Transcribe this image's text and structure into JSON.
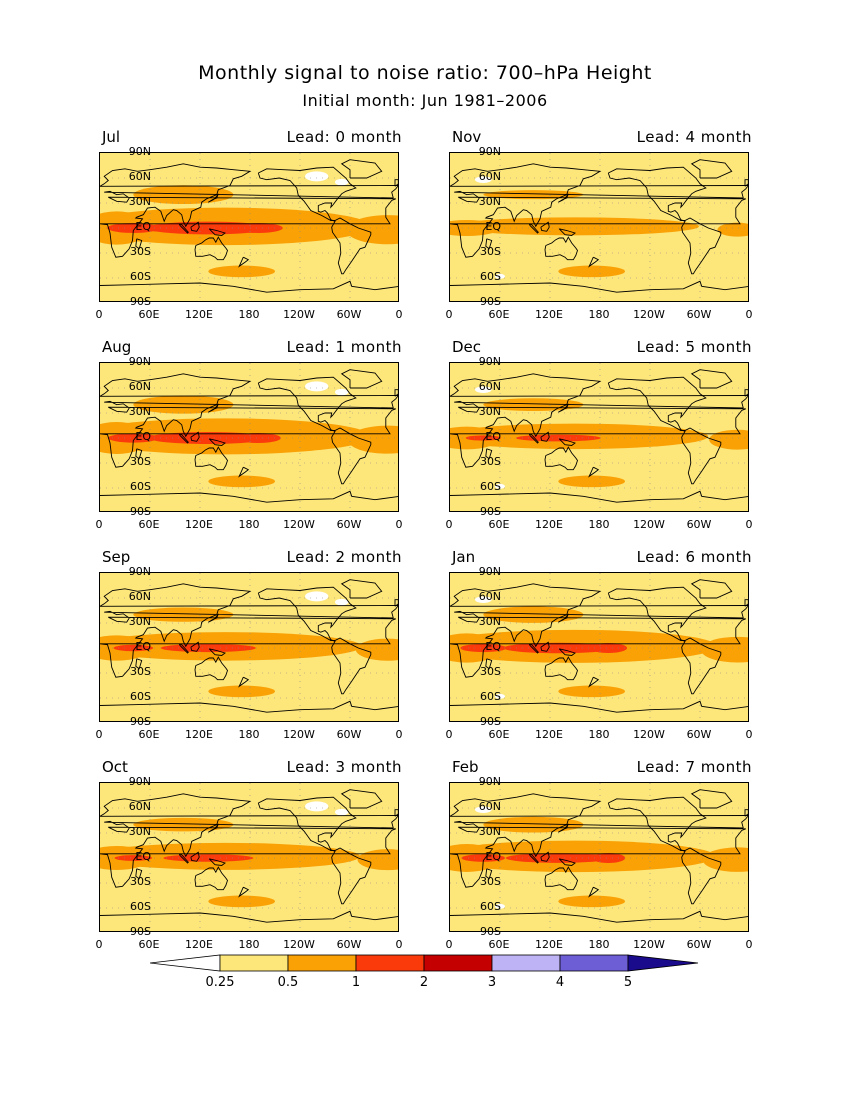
{
  "title": "Monthly signal to noise ratio: 700–hPa Height",
  "subtitle": "Initial month: Jun 1981–2006",
  "y_ticks": [
    "90N",
    "60N",
    "30N",
    "EQ",
    "30S",
    "60S",
    "90S"
  ],
  "x_ticks": [
    "0",
    "60E",
    "120E",
    "180",
    "120W",
    "60W",
    "0"
  ],
  "panels": [
    {
      "month": "Jul",
      "lead": "Lead: 0 month",
      "strength": 1.25
    },
    {
      "month": "Nov",
      "lead": "Lead: 4 month",
      "strength": 0.6
    },
    {
      "month": "Aug",
      "lead": "Lead: 1 month",
      "strength": 1.2
    },
    {
      "month": "Dec",
      "lead": "Lead: 5 month",
      "strength": 0.85
    },
    {
      "month": "Sep",
      "lead": "Lead: 2 month",
      "strength": 0.95
    },
    {
      "month": "Jan",
      "lead": "Lead: 6 month",
      "strength": 1.1
    },
    {
      "month": "Oct",
      "lead": "Lead: 3 month",
      "strength": 0.9
    },
    {
      "month": "Feb",
      "lead": "Lead: 7 month",
      "strength": 1.05
    }
  ],
  "colorbar": {
    "labels": [
      "0.25",
      "0.5",
      "1",
      "2",
      "3",
      "4",
      "5"
    ],
    "colors": [
      "#ffffff",
      "#fde67a",
      "#f9a105",
      "#fb3a0c",
      "#c40000",
      "#bdb3f5",
      "#6d5ed6",
      "#1a0a8c"
    ]
  }
}
